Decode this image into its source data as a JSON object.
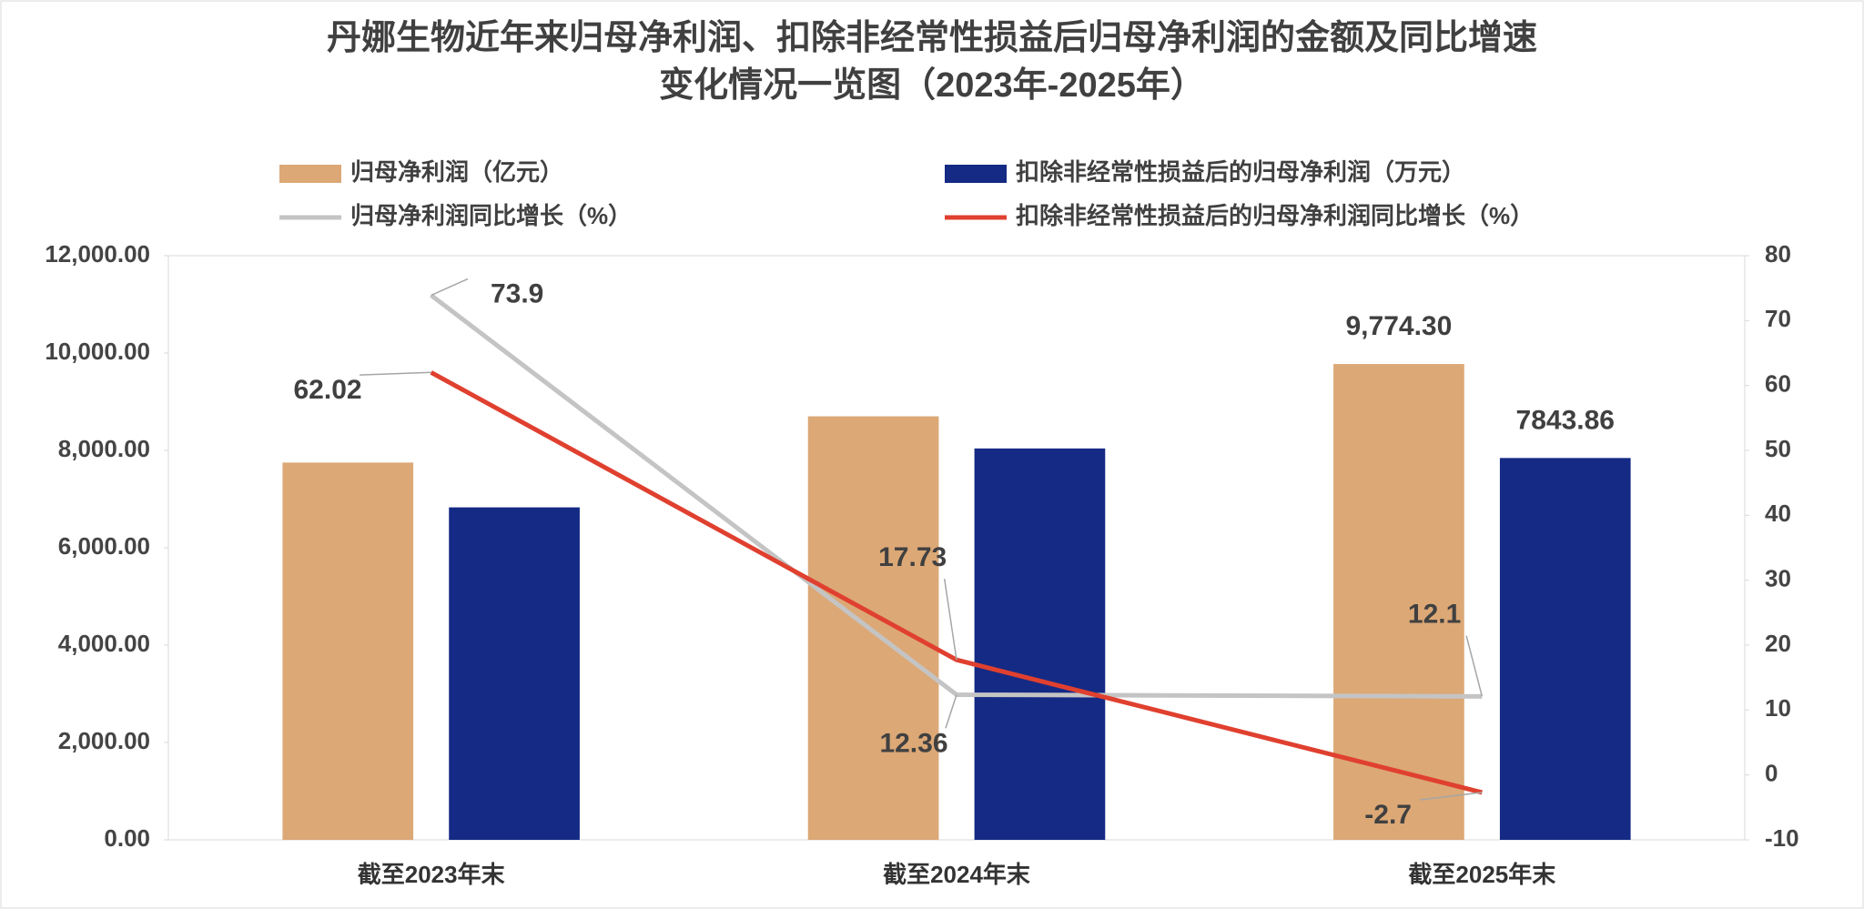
{
  "chart_data": {
    "type": "bar",
    "title": "丹娜生物近年来归母净利润、扣除非经常性损益后归母净利润的金额及同比增速",
    "subtitle": "变化情况一览图（2023年-2025年）",
    "categories": [
      "截至2023年末",
      "截至2024年末",
      "截至2025年末"
    ],
    "series": [
      {
        "name": "归母净利润（亿元）",
        "type": "bar",
        "color": "#dca876",
        "values": [
          7750,
          8700,
          9774.3
        ],
        "value_labels": [
          null,
          null,
          "9,774.30"
        ]
      },
      {
        "name": "扣除非经常性损益后的归母净利润（万元）",
        "type": "bar",
        "color": "#152a84",
        "values": [
          6830,
          8040,
          7843.86
        ],
        "value_labels": [
          null,
          null,
          "7843.86"
        ]
      },
      {
        "name": "归母净利润同比增长（%）",
        "type": "line",
        "axis": "y2",
        "color": "#c4c4c4",
        "values": [
          73.9,
          12.36,
          12.1
        ]
      },
      {
        "name": "扣除非经常性损益后的归母净利润同比增长（%）",
        "type": "line",
        "axis": "y2",
        "color": "#e0402f",
        "values": [
          62.02,
          17.73,
          -2.7
        ]
      }
    ],
    "ylim": [
      0,
      12000
    ],
    "yticks": [
      {
        "value": 0,
        "label": "0.00"
      },
      {
        "value": 2000,
        "label": "2,000.00"
      },
      {
        "value": 4000,
        "label": "4,000.00"
      },
      {
        "value": 6000,
        "label": "6,000.00"
      },
      {
        "value": 8000,
        "label": "8,000.00"
      },
      {
        "value": 10000,
        "label": "10,000.00"
      },
      {
        "value": 12000,
        "label": "12,000.00"
      }
    ],
    "y2lim": [
      -10,
      80
    ],
    "y2ticks": [
      -10,
      0,
      10,
      20,
      30,
      40,
      50,
      60,
      70,
      80
    ],
    "grid": false,
    "legend": "top"
  }
}
